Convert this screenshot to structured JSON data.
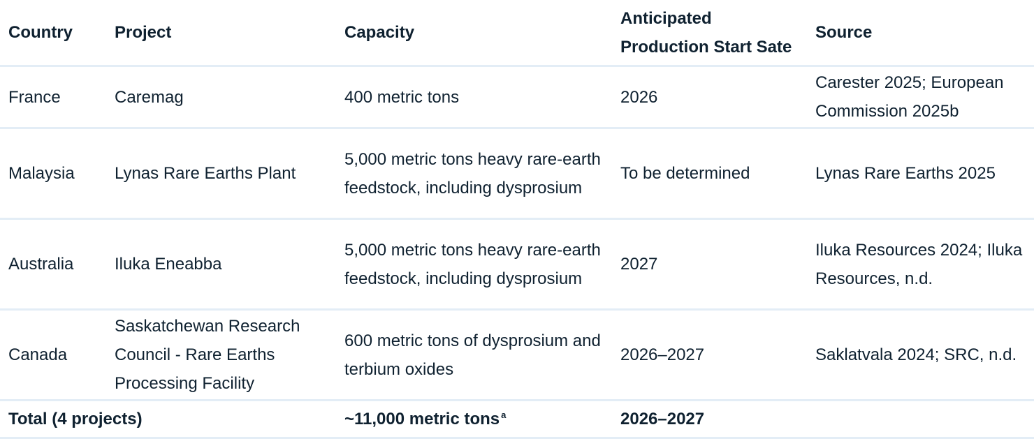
{
  "headers": {
    "country": "Country",
    "project": "Project",
    "capacity": "Capacity",
    "start_date_line1": "Anticipated",
    "start_date_line2": "Production Start Sate",
    "source": "Source"
  },
  "rows": [
    {
      "country": "France",
      "project": "Caremag",
      "capacity": "400 metric tons",
      "start": "2026",
      "source": "Carester 2025; European Commission 2025b"
    },
    {
      "country": "Malaysia",
      "project": "Lynas Rare Earths Plant",
      "capacity": "5,000 metric tons heavy rare-earth feedstock, including dysprosium",
      "start": "To be determined",
      "source": "Lynas Rare Earths 2025"
    },
    {
      "country": "Australia",
      "project": "Iluka Eneabba",
      "capacity": "5,000 metric tons heavy rare-earth feedstock, including dysprosium",
      "start": "2027",
      "source": "Iluka Resources 2024; Iluka Resources, n.d."
    },
    {
      "country": "Canada",
      "project": "Saskatchewan Research Council - Rare Earths Processing Facility",
      "capacity": "600 metric tons of dysprosium and terbium oxides",
      "start": "2026–2027",
      "source": "Saklatvala 2024; SRC, n.d."
    }
  ],
  "total": {
    "label": "Total (4 projects)",
    "capacity": "~11,000 metric tons",
    "capacity_note": "a",
    "start": "2026–2027"
  }
}
